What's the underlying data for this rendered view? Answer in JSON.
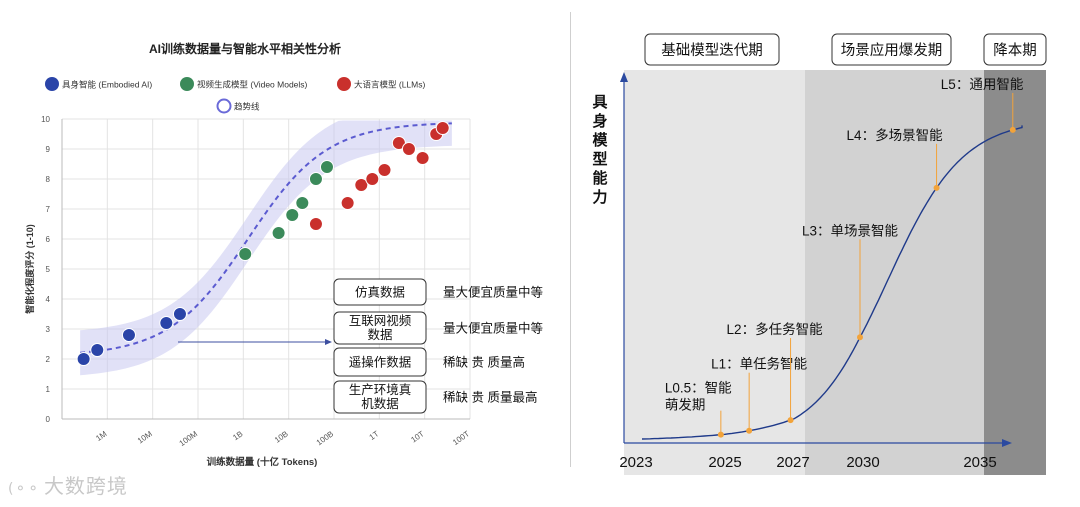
{
  "chart_data": [
    {
      "type": "scatter",
      "title": "AI训练数据量与智能水平相关性分析",
      "xlabel": "训练数据量 (十亿 Tokens)",
      "ylabel": "智能化程度评分 (1-10)",
      "x_ticks": [
        "1M",
        "10M",
        "100M",
        "1B",
        "10B",
        "100B",
        "1T",
        "10T",
        "100T"
      ],
      "x_scale": "log",
      "ylim": [
        0,
        10
      ],
      "y_ticks": [
        "0",
        "1",
        "2",
        "3",
        "4",
        "5",
        "6",
        "7",
        "8",
        "9",
        "10"
      ],
      "grid": true,
      "legend_position": "top",
      "legend": [
        {
          "name": "具身智能 (Embodied AI)",
          "color": "#2a44a8"
        },
        {
          "name": "视频生成模型 (Video Models)",
          "color": "#3b8a5a"
        },
        {
          "name": "大语言模型 (LLMs)",
          "color": "#c9302c"
        },
        {
          "name": "趋势线",
          "color": "#6a6ad8"
        }
      ],
      "series": [
        {
          "name": "具身智能 (Embodied AI)",
          "color": "#2a44a8",
          "x": [
            0.0003,
            0.0006,
            0.003,
            0.02,
            0.04
          ],
          "y": [
            2.0,
            2.3,
            2.8,
            3.2,
            3.5
          ]
        },
        {
          "name": "视频生成模型 (Video Models)",
          "color": "#3b8a5a",
          "x": [
            1.1,
            6,
            12,
            20,
            40,
            70
          ],
          "y": [
            5.5,
            6.2,
            6.8,
            7.2,
            8.0,
            8.4
          ]
        },
        {
          "name": "大语言模型 (LLMs)",
          "color": "#c9302c",
          "x": [
            40,
            200,
            400,
            700,
            1300,
            2700,
            4500,
            9000,
            18000,
            25000
          ],
          "y": [
            6.5,
            7.2,
            7.8,
            8.0,
            8.3,
            9.2,
            9.0,
            8.7,
            9.5,
            9.7
          ]
        }
      ],
      "annotations": [
        {
          "label": "仿真数据",
          "note": "量大便宜质量中等"
        },
        {
          "label": "互联网视频数据",
          "note": "量大便宜质量中等"
        },
        {
          "label": "遥操作数据",
          "note": "稀缺 贵 质量高"
        },
        {
          "label": "生产环境真机数据",
          "note": "稀缺 贵 质量最高"
        }
      ]
    },
    {
      "type": "line",
      "ylabel": "具身模型能力",
      "x_ticks": [
        "2023",
        "2025",
        "2027",
        "2030",
        "2035"
      ],
      "phases": [
        {
          "label": "基础模型迭代期",
          "color": "#e6e6e6"
        },
        {
          "label": "场景应用爆发期",
          "color": "#d2d2d2"
        },
        {
          "label": "降本期",
          "color": "#8c8c8c"
        }
      ],
      "milestones": [
        {
          "label": "L0.5：智能萌发期",
          "year": 2025
        },
        {
          "label": "L1：单任务智能",
          "year": 2025.5
        },
        {
          "label": "L2：多任务智能",
          "year": 2027
        },
        {
          "label": "L3：单场景智能",
          "year": 2030
        },
        {
          "label": "L4：多场景智能",
          "year": 2033.5
        },
        {
          "label": "L5：通用智能",
          "year": 2036.5
        }
      ],
      "line_color": "#1f3a8a",
      "marker_color": "#f2a33a"
    }
  ],
  "watermark": "大数跨境"
}
